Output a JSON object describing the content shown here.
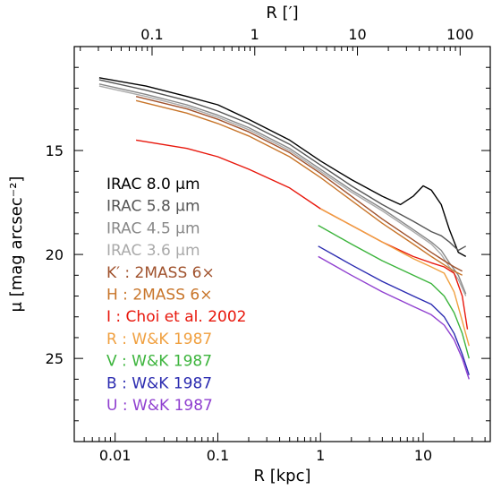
{
  "chart_data": {
    "type": "line",
    "xlabel": "R [kpc]",
    "ylabel": "μ [mag arcsec⁻²]",
    "top_xlabel": "R [′]",
    "x_scale": "log",
    "xlim": [
      0.004,
      45
    ],
    "ylim": [
      29,
      10
    ],
    "x_ticks": [
      "0.01",
      "0.1",
      "1",
      "10"
    ],
    "x_tick_values": [
      0.01,
      0.1,
      1,
      10
    ],
    "top_ticks": [
      "0.1",
      "1",
      "10",
      "100"
    ],
    "top_tick_values_kpc": [
      0.0229,
      0.229,
      2.29,
      22.9
    ],
    "y_ticks": [
      "15",
      "20",
      "25"
    ],
    "y_tick_values": [
      15,
      20,
      25
    ],
    "grid": false,
    "legend_placement": "left",
    "series": [
      {
        "name": "IRAC 8.0 μm",
        "color": "#000000",
        "points": [
          [
            0.007,
            11.5
          ],
          [
            0.02,
            11.9
          ],
          [
            0.05,
            12.4
          ],
          [
            0.1,
            12.8
          ],
          [
            0.2,
            13.5
          ],
          [
            0.5,
            14.5
          ],
          [
            1,
            15.5
          ],
          [
            2,
            16.4
          ],
          [
            4,
            17.2
          ],
          [
            6,
            17.6
          ],
          [
            8,
            17.2
          ],
          [
            10,
            16.7
          ],
          [
            12,
            16.9
          ],
          [
            15,
            17.6
          ],
          [
            18,
            18.8
          ],
          [
            22,
            19.9
          ],
          [
            26,
            20.1
          ]
        ]
      },
      {
        "name": "IRAC 5.8 μm",
        "color": "#555555",
        "points": [
          [
            0.007,
            11.6
          ],
          [
            0.02,
            12.1
          ],
          [
            0.05,
            12.6
          ],
          [
            0.1,
            13.1
          ],
          [
            0.2,
            13.7
          ],
          [
            0.5,
            14.7
          ],
          [
            1,
            15.7
          ],
          [
            2,
            16.7
          ],
          [
            4,
            17.6
          ],
          [
            8,
            18.4
          ],
          [
            12,
            18.9
          ],
          [
            15,
            19.1
          ],
          [
            18,
            19.4
          ],
          [
            22,
            19.8
          ],
          [
            26,
            19.6
          ]
        ]
      },
      {
        "name": "IRAC 4.5 μm",
        "color": "#888888",
        "points": [
          [
            0.007,
            11.8
          ],
          [
            0.02,
            12.3
          ],
          [
            0.05,
            12.8
          ],
          [
            0.1,
            13.3
          ],
          [
            0.2,
            13.9
          ],
          [
            0.5,
            14.9
          ],
          [
            1,
            15.9
          ],
          [
            2,
            16.9
          ],
          [
            4,
            17.8
          ],
          [
            8,
            18.8
          ],
          [
            12,
            19.4
          ],
          [
            15,
            19.8
          ],
          [
            18,
            20.4
          ],
          [
            22,
            21.0
          ],
          [
            26,
            21.9
          ]
        ]
      },
      {
        "name": "IRAC 3.6 μm",
        "color": "#aaaaaa",
        "points": [
          [
            0.007,
            11.9
          ],
          [
            0.02,
            12.4
          ],
          [
            0.05,
            12.9
          ],
          [
            0.1,
            13.4
          ],
          [
            0.2,
            14.0
          ],
          [
            0.5,
            15.0
          ],
          [
            1,
            16.0
          ],
          [
            2,
            17.0
          ],
          [
            4,
            17.9
          ],
          [
            8,
            18.9
          ],
          [
            12,
            19.5
          ],
          [
            15,
            20.0
          ],
          [
            18,
            20.6
          ],
          [
            22,
            21.2
          ],
          [
            26,
            22.0
          ]
        ]
      },
      {
        "name": "K′ : 2MASS 6×",
        "color": "#a0522d",
        "points": [
          [
            0.016,
            12.4
          ],
          [
            0.05,
            13.0
          ],
          [
            0.1,
            13.5
          ],
          [
            0.2,
            14.1
          ],
          [
            0.5,
            15.1
          ],
          [
            1,
            16.1
          ],
          [
            2,
            17.2
          ],
          [
            4,
            18.3
          ],
          [
            8,
            19.3
          ],
          [
            12,
            19.9
          ],
          [
            16,
            20.3
          ],
          [
            20,
            20.6
          ],
          [
            24,
            20.8
          ]
        ]
      },
      {
        "name": "H : 2MASS 6×",
        "color": "#c8752a",
        "points": [
          [
            0.016,
            12.6
          ],
          [
            0.05,
            13.2
          ],
          [
            0.1,
            13.7
          ],
          [
            0.2,
            14.3
          ],
          [
            0.5,
            15.3
          ],
          [
            1,
            16.3
          ],
          [
            2,
            17.4
          ],
          [
            4,
            18.5
          ],
          [
            8,
            19.5
          ],
          [
            12,
            20.1
          ],
          [
            16,
            20.5
          ],
          [
            20,
            20.8
          ],
          [
            24,
            21.0
          ]
        ]
      },
      {
        "name": "I : Choi et al. 2002",
        "color": "#e8170c",
        "points": [
          [
            0.016,
            14.5
          ],
          [
            0.05,
            14.9
          ],
          [
            0.1,
            15.3
          ],
          [
            0.2,
            15.9
          ],
          [
            0.5,
            16.8
          ],
          [
            1,
            17.8
          ],
          [
            2,
            18.6
          ],
          [
            4,
            19.4
          ],
          [
            8,
            20.1
          ],
          [
            12,
            20.4
          ],
          [
            16,
            20.6
          ],
          [
            20,
            20.9
          ],
          [
            24,
            22.0
          ],
          [
            27,
            23.6
          ]
        ]
      },
      {
        "name": "R : W&K 1987",
        "color": "#f0a040",
        "points": [
          [
            1,
            17.8
          ],
          [
            2,
            18.6
          ],
          [
            4,
            19.4
          ],
          [
            8,
            20.2
          ],
          [
            12,
            20.6
          ],
          [
            16,
            20.9
          ],
          [
            20,
            21.8
          ],
          [
            24,
            23.2
          ],
          [
            28,
            24.4
          ]
        ]
      },
      {
        "name": "V : W&K 1987",
        "color": "#3cb43c",
        "points": [
          [
            0.95,
            18.6
          ],
          [
            2,
            19.5
          ],
          [
            4,
            20.3
          ],
          [
            8,
            21.0
          ],
          [
            12,
            21.4
          ],
          [
            16,
            22.0
          ],
          [
            20,
            22.8
          ],
          [
            24,
            23.8
          ],
          [
            28,
            25.0
          ]
        ]
      },
      {
        "name": "B : W&K 1987",
        "color": "#2b2bb0",
        "points": [
          [
            0.95,
            19.6
          ],
          [
            2,
            20.5
          ],
          [
            4,
            21.3
          ],
          [
            8,
            22.0
          ],
          [
            12,
            22.4
          ],
          [
            16,
            23.0
          ],
          [
            20,
            23.8
          ],
          [
            24,
            24.8
          ],
          [
            28,
            25.8
          ]
        ]
      },
      {
        "name": "U : W&K 1987",
        "color": "#9040d0",
        "points": [
          [
            0.95,
            20.1
          ],
          [
            2,
            21.0
          ],
          [
            4,
            21.8
          ],
          [
            8,
            22.5
          ],
          [
            12,
            22.9
          ],
          [
            16,
            23.4
          ],
          [
            20,
            24.1
          ],
          [
            24,
            25.0
          ],
          [
            28,
            26.0
          ]
        ]
      }
    ]
  }
}
